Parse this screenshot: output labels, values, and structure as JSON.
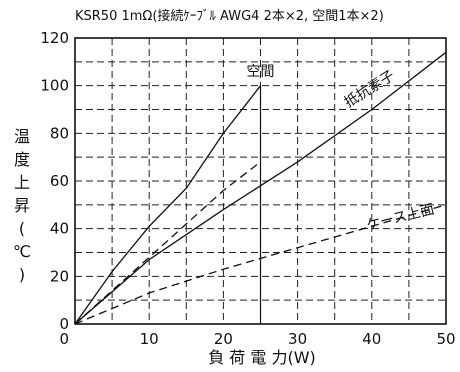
{
  "chart_data": {
    "type": "line",
    "title": "KSR50 1mΩ(接続ｹｰﾌﾞﾙ AWG4  2本×2,  空間1本×2)",
    "xlabel": "負 荷 電 力(W)",
    "ylabel_chars": [
      "温",
      "度",
      "上",
      "昇",
      "(",
      "℃",
      ")"
    ],
    "xlim": [
      0,
      50
    ],
    "ylim": [
      0,
      120
    ],
    "x_ticks": [
      "0",
      "10",
      "20",
      "30",
      "40",
      "50"
    ],
    "y_ticks": [
      "0",
      "20",
      "40",
      "60",
      "80",
      "100",
      "120"
    ],
    "x_tick_values": [
      0,
      10,
      20,
      30,
      40,
      50
    ],
    "y_tick_values": [
      0,
      20,
      40,
      60,
      80,
      100,
      120
    ],
    "grid": true,
    "series": [
      {
        "name": "空間",
        "style": "solid",
        "x": [
          0,
          5,
          10,
          15,
          20,
          25
        ],
        "y": [
          0,
          22,
          41,
          57,
          80,
          100
        ]
      },
      {
        "name": "",
        "style": "dashed",
        "x": [
          0,
          10,
          20,
          25
        ],
        "y": [
          0,
          28,
          56,
          68
        ]
      },
      {
        "name": "抵抗素子",
        "style": "solid",
        "x": [
          0,
          10,
          20,
          30,
          40,
          50
        ],
        "y": [
          0,
          27,
          48,
          68,
          90,
          114
        ]
      },
      {
        "name": "ケース上面",
        "style": "dashed",
        "x": [
          0,
          10,
          20,
          30,
          40,
          50
        ],
        "y": [
          0,
          13,
          23,
          32,
          41,
          50
        ]
      }
    ],
    "annotations": [
      {
        "text": "空間",
        "x": 25,
        "y": 104,
        "rotate": 0
      },
      {
        "text": "抵抗素子",
        "x": 40,
        "y": 97,
        "rotate": -32
      },
      {
        "text": "ケース上面",
        "x": 44,
        "y": 43,
        "rotate": -14
      }
    ],
    "vertical_marker_x": 25
  }
}
